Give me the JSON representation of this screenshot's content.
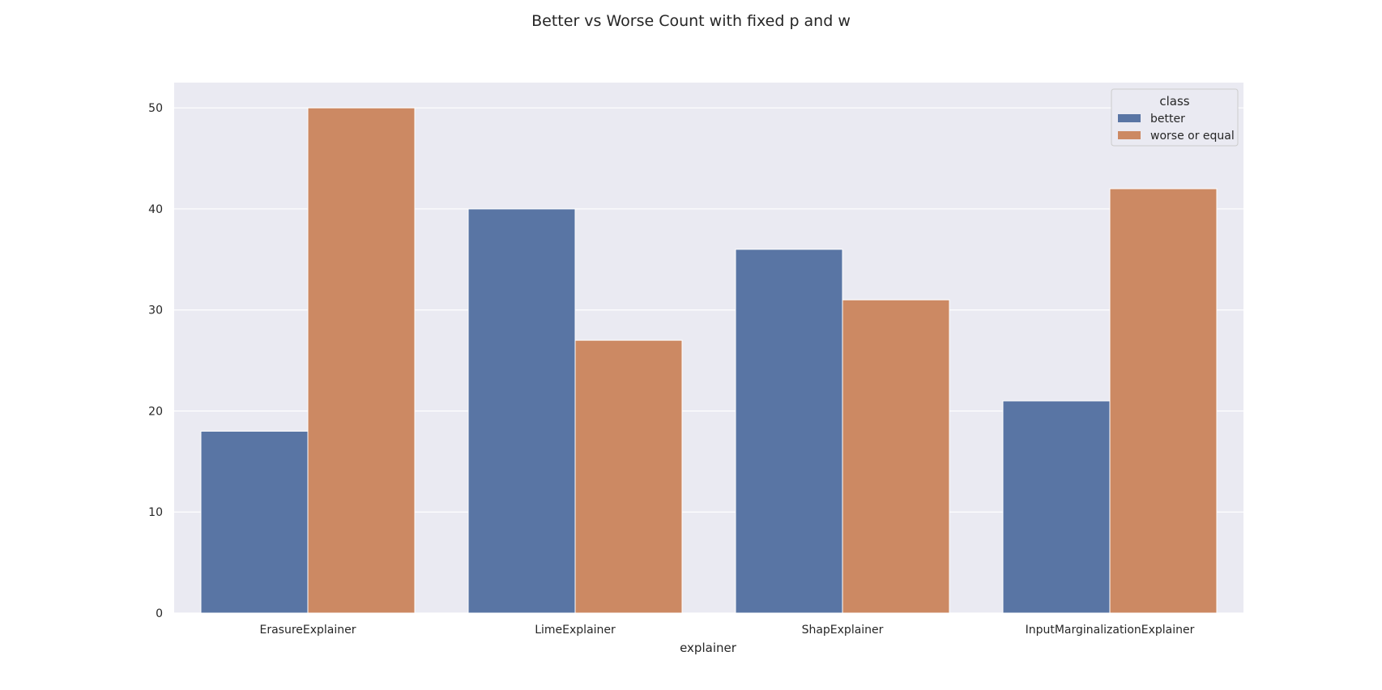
{
  "chart_data": {
    "type": "bar",
    "title": "Better vs Worse Count with fixed p and w",
    "xlabel": "explainer",
    "ylabel": "",
    "categories": [
      "ErasureExplainer",
      "LimeExplainer",
      "ShapExplainer",
      "InputMarginalizationExplainer"
    ],
    "series": [
      {
        "name": "better",
        "values": [
          18,
          40,
          36,
          21
        ],
        "color": "#5975a4"
      },
      {
        "name": "worse or equal",
        "values": [
          50,
          27,
          31,
          42
        ],
        "color": "#cc8963"
      }
    ],
    "ylim": [
      0,
      52.5
    ],
    "yticks": [
      0,
      10,
      20,
      30,
      40,
      50
    ],
    "grid": true,
    "legend": {
      "title": "class",
      "placement": "top-right"
    },
    "background_color": "#eaeaf2",
    "grid_color": "#ffffff"
  }
}
